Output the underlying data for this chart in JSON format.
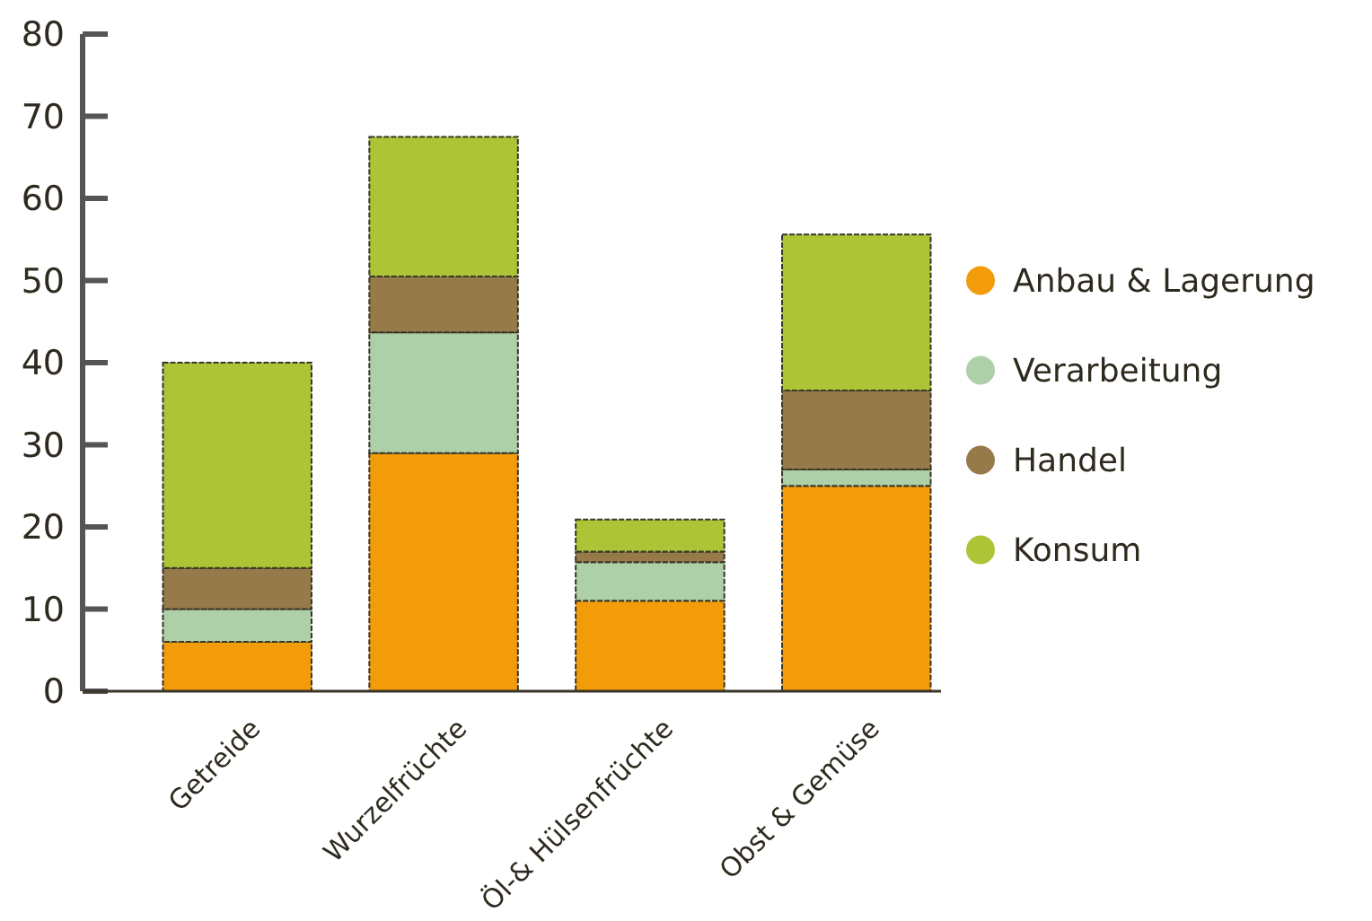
{
  "chart_data": {
    "type": "bar",
    "stacked": true,
    "categories": [
      "Getreide",
      "Wurzelfrüchte",
      "Öl-& Hülsenfrüchte",
      "Obst & Gemüse"
    ],
    "series": [
      {
        "name": "Anbau & Lagerung",
        "color": "#f39c0a",
        "values": [
          6,
          29,
          11,
          25
        ]
      },
      {
        "name": "Verarbeitung",
        "color": "#aed0a9",
        "values": [
          4,
          14.7,
          4.7,
          2
        ]
      },
      {
        "name": "Handel",
        "color": "#967a4a",
        "values": [
          5,
          6.8,
          1.3,
          9.6
        ]
      },
      {
        "name": "Konsum",
        "color": "#acc435",
        "values": [
          25,
          17,
          3.9,
          19
        ]
      }
    ],
    "ylim": [
      0,
      80
    ],
    "yticks": [
      0,
      10,
      20,
      30,
      40,
      50,
      60,
      70,
      80
    ],
    "grid": false,
    "legend": "right"
  }
}
